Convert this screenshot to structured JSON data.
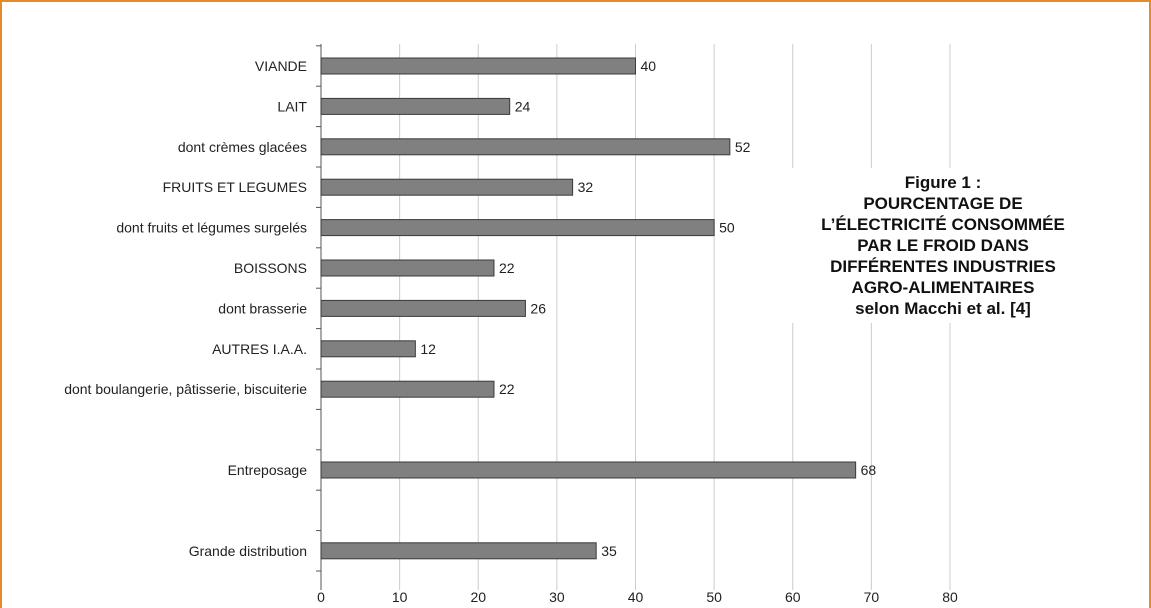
{
  "colors": {
    "frame": "#e8892b",
    "bar_fill": "#808080",
    "bar_stroke": "#3a3a3a",
    "grid": "#cccccc",
    "axis": "#555555"
  },
  "caption": {
    "lines": [
      "Figure 1 :",
      "POURCENTAGE DE",
      "L’ÉLECTRICITÉ CONSOMMÉE",
      "PAR LE FROID DANS",
      "DIFFÉRENTES INDUSTRIES",
      "AGRO-ALIMENTAIRES",
      "selon Macchi et al. [4]"
    ]
  },
  "chart_data": {
    "type": "bar",
    "orientation": "horizontal",
    "categories": [
      "VIANDE",
      "LAIT",
      "dont crèmes glacées",
      "FRUITS ET LEGUMES",
      "dont fruits et légumes surgelés",
      "BOISSONS",
      "dont brasserie",
      "AUTRES I.A.A.",
      "dont boulangerie, pâtisserie, biscuiterie",
      "",
      "Entreposage",
      "",
      "Grande distribution"
    ],
    "values": [
      40,
      24,
      52,
      32,
      50,
      22,
      26,
      12,
      22,
      null,
      68,
      null,
      35
    ],
    "xlim": [
      0,
      80
    ],
    "xticks": [
      0,
      10,
      20,
      30,
      40,
      50,
      60,
      70,
      80
    ],
    "grid": true,
    "data_labels": true
  }
}
